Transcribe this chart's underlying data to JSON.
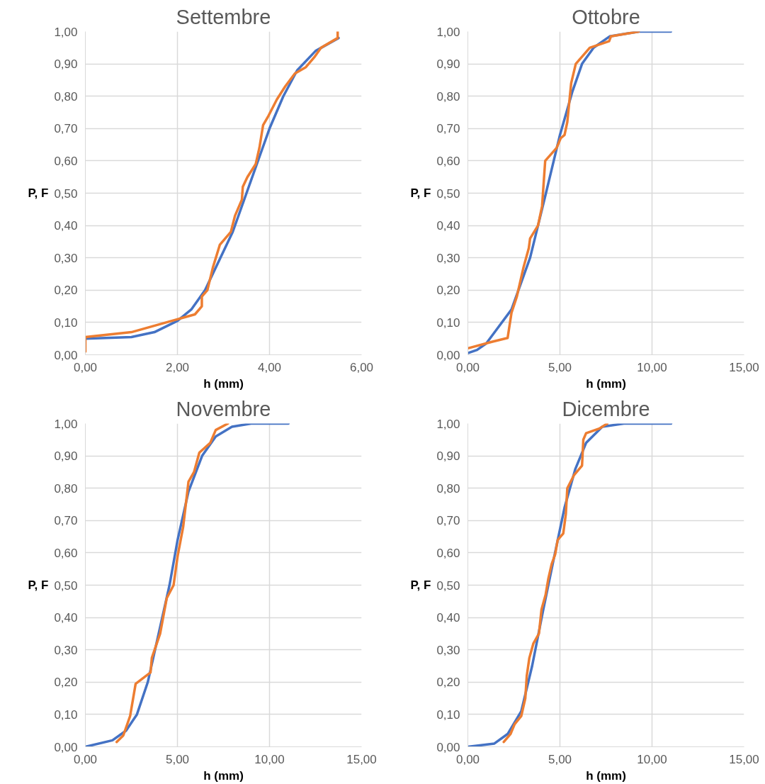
{
  "chart_data": [
    {
      "type": "line",
      "title": "Settembre",
      "xlabel": "h (mm)",
      "ylabel": "P, F",
      "grid": true,
      "line_style": "solid",
      "marker": "none",
      "xlim": [
        0,
        6
      ],
      "xticks": [
        {
          "value": 0,
          "label": "0,00"
        },
        {
          "value": 2,
          "label": "2,00"
        },
        {
          "value": 4,
          "label": "4,00"
        },
        {
          "value": 6,
          "label": "6,00"
        }
      ],
      "ylim": [
        0,
        1
      ],
      "yticks": [
        {
          "value": 0,
          "label": "0,00"
        },
        {
          "value": 0.1,
          "label": "0,10"
        },
        {
          "value": 0.2,
          "label": "0,20"
        },
        {
          "value": 0.3,
          "label": "0,30"
        },
        {
          "value": 0.4,
          "label": "0,40"
        },
        {
          "value": 0.5,
          "label": "0,50"
        },
        {
          "value": 0.6,
          "label": "0,60"
        },
        {
          "value": 0.7,
          "label": "0,70"
        },
        {
          "value": 0.8,
          "label": "0,80"
        },
        {
          "value": 0.9,
          "label": "0,90"
        },
        {
          "value": 1,
          "label": "1,00"
        }
      ],
      "series": [
        {
          "color": "#4472c4",
          "x": [
            0,
            1,
            1.5,
            2,
            2.3,
            2.6,
            2.9,
            3.2,
            3.5,
            3.8,
            4.0,
            4.3,
            4.6,
            5.0,
            5.5
          ],
          "values": [
            0.05,
            0.055,
            0.07,
            0.105,
            0.14,
            0.2,
            0.29,
            0.38,
            0.5,
            0.62,
            0.7,
            0.8,
            0.88,
            0.94,
            0.98
          ]
        },
        {
          "color": "#ed7d31",
          "x": [
            0,
            0,
            1.0,
            2.0,
            2.38,
            2.53,
            2.53,
            2.65,
            2.77,
            2.92,
            3.16,
            3.25,
            3.4,
            3.42,
            3.52,
            3.7,
            3.78,
            3.86,
            3.98,
            4.16,
            4.34,
            4.55,
            4.79,
            4.97,
            5.12,
            5.48,
            5.48
          ],
          "values": [
            0.01,
            0.055,
            0.07,
            0.11,
            0.125,
            0.15,
            0.18,
            0.2,
            0.27,
            0.34,
            0.38,
            0.43,
            0.48,
            0.52,
            0.55,
            0.59,
            0.64,
            0.71,
            0.74,
            0.79,
            0.83,
            0.87,
            0.89,
            0.92,
            0.95,
            0.98,
            1.0
          ]
        }
      ]
    },
    {
      "type": "line",
      "title": "Ottobre",
      "xlabel": "h (mm)",
      "ylabel": "P, F",
      "grid": true,
      "line_style": "solid",
      "marker": "none",
      "xlim": [
        0,
        15
      ],
      "xticks": [
        {
          "value": 0,
          "label": "0,00"
        },
        {
          "value": 5,
          "label": "5,00"
        },
        {
          "value": 10,
          "label": "10,00"
        },
        {
          "value": 15,
          "label": "15,00"
        }
      ],
      "ylim": [
        0,
        1
      ],
      "yticks": [
        {
          "value": 0,
          "label": "0,00"
        },
        {
          "value": 0.1,
          "label": "0,10"
        },
        {
          "value": 0.2,
          "label": "0,20"
        },
        {
          "value": 0.3,
          "label": "0,30"
        },
        {
          "value": 0.4,
          "label": "0,40"
        },
        {
          "value": 0.5,
          "label": "0,50"
        },
        {
          "value": 0.6,
          "label": "0,60"
        },
        {
          "value": 0.7,
          "label": "0,70"
        },
        {
          "value": 0.8,
          "label": "0,80"
        },
        {
          "value": 0.9,
          "label": "0,90"
        },
        {
          "value": 1,
          "label": "1,00"
        }
      ],
      "series": [
        {
          "color": "#4472c4",
          "x": [
            0,
            0.5,
            1,
            1.65,
            2.37,
            3.38,
            4.24,
            5,
            5.68,
            6.2,
            6.83,
            7.7,
            9.3,
            11.03
          ],
          "values": [
            0.005,
            0.015,
            0.035,
            0.085,
            0.14,
            0.3,
            0.5,
            0.68,
            0.815,
            0.9,
            0.95,
            0.985,
            1.0,
            1.0
          ]
        },
        {
          "color": "#ed7d31",
          "x": [
            0,
            1.3,
            2.16,
            2.37,
            2.66,
            3.02,
            3.31,
            3.38,
            3.81,
            4.03,
            4.2,
            4.82,
            5.04,
            5.25,
            5.4,
            5.61,
            5.86,
            6.62,
            7.67,
            7.77,
            9.28
          ],
          "values": [
            0.02,
            0.04,
            0.052,
            0.13,
            0.18,
            0.27,
            0.33,
            0.36,
            0.4,
            0.46,
            0.6,
            0.64,
            0.67,
            0.68,
            0.72,
            0.84,
            0.9,
            0.95,
            0.97,
            0.985,
            1.0
          ]
        }
      ]
    },
    {
      "type": "line",
      "title": "Novembre",
      "xlabel": "h (mm)",
      "ylabel": "P, F",
      "grid": true,
      "line_style": "solid",
      "marker": "none",
      "xlim": [
        0,
        15
      ],
      "xticks": [
        {
          "value": 0,
          "label": "0,00"
        },
        {
          "value": 5,
          "label": "5,00"
        },
        {
          "value": 10,
          "label": "10,00"
        },
        {
          "value": 15,
          "label": "15,00"
        }
      ],
      "ylim": [
        0,
        1
      ],
      "yticks": [
        {
          "value": 0,
          "label": "0,00"
        },
        {
          "value": 0.1,
          "label": "0,10"
        },
        {
          "value": 0.2,
          "label": "0,20"
        },
        {
          "value": 0.3,
          "label": "0,30"
        },
        {
          "value": 0.4,
          "label": "0,40"
        },
        {
          "value": 0.5,
          "label": "0,50"
        },
        {
          "value": 0.6,
          "label": "0,60"
        },
        {
          "value": 0.7,
          "label": "0,70"
        },
        {
          "value": 0.8,
          "label": "0,80"
        },
        {
          "value": 0.9,
          "label": "0,90"
        },
        {
          "value": 1,
          "label": "1,00"
        }
      ],
      "series": [
        {
          "color": "#4472c4",
          "x": [
            0,
            1.47,
            2.21,
            2.8,
            3.39,
            3.98,
            4.57,
            5.01,
            5.6,
            6.34,
            7.08,
            7.96,
            9,
            11.03
          ],
          "values": [
            0.0,
            0.02,
            0.05,
            0.1,
            0.2,
            0.35,
            0.5,
            0.64,
            0.79,
            0.9,
            0.96,
            0.99,
            1.0,
            1.0
          ]
        },
        {
          "color": "#ed7d31",
          "x": [
            1.7,
            2.06,
            2.43,
            2.73,
            3.54,
            3.61,
            4.06,
            4.42,
            4.79,
            5.01,
            5.31,
            5.6,
            5.9,
            6.19,
            6.78,
            7.08,
            7.74
          ],
          "values": [
            0.015,
            0.035,
            0.095,
            0.195,
            0.23,
            0.275,
            0.35,
            0.46,
            0.5,
            0.59,
            0.68,
            0.82,
            0.85,
            0.91,
            0.94,
            0.98,
            1.0
          ]
        }
      ]
    },
    {
      "type": "line",
      "title": "Dicembre",
      "xlabel": "h (mm)",
      "ylabel": "P, F",
      "grid": true,
      "line_style": "solid",
      "marker": "none",
      "xlim": [
        0,
        15
      ],
      "xticks": [
        {
          "value": 0,
          "label": "0,00"
        },
        {
          "value": 5,
          "label": "5,00"
        },
        {
          "value": 10,
          "label": "10,00"
        },
        {
          "value": 15,
          "label": "15,00"
        }
      ],
      "ylim": [
        0,
        1
      ],
      "yticks": [
        {
          "value": 0,
          "label": "0,00"
        },
        {
          "value": 0.1,
          "label": "0,10"
        },
        {
          "value": 0.2,
          "label": "0,20"
        },
        {
          "value": 0.3,
          "label": "0,30"
        },
        {
          "value": 0.4,
          "label": "0,40"
        },
        {
          "value": 0.5,
          "label": "0,50"
        },
        {
          "value": 0.6,
          "label": "0,60"
        },
        {
          "value": 0.7,
          "label": "0,70"
        },
        {
          "value": 0.8,
          "label": "0,80"
        },
        {
          "value": 0.9,
          "label": "0,90"
        },
        {
          "value": 1,
          "label": "1,00"
        }
      ],
      "series": [
        {
          "color": "#4472c4",
          "x": [
            0,
            1.44,
            2.17,
            2.9,
            3.49,
            4.08,
            4.66,
            5.25,
            5.84,
            6.42,
            7.3,
            8.47,
            11.04
          ],
          "values": [
            0.0,
            0.01,
            0.04,
            0.11,
            0.25,
            0.42,
            0.58,
            0.74,
            0.86,
            0.94,
            0.99,
            1.0,
            1.0
          ]
        },
        {
          "color": "#ed7d31",
          "x": [
            1.95,
            2.32,
            2.54,
            2.9,
            3.12,
            3.2,
            3.34,
            3.56,
            3.86,
            4.0,
            4.22,
            4.37,
            4.55,
            4.74,
            4.88,
            5.18,
            5.32,
            5.4,
            5.76,
            6.2,
            6.27,
            6.42,
            7.16,
            7.57
          ],
          "values": [
            0.015,
            0.04,
            0.07,
            0.095,
            0.15,
            0.22,
            0.275,
            0.32,
            0.35,
            0.425,
            0.47,
            0.52,
            0.565,
            0.595,
            0.64,
            0.66,
            0.72,
            0.8,
            0.84,
            0.87,
            0.95,
            0.97,
            0.985,
            1.0
          ]
        }
      ]
    }
  ]
}
